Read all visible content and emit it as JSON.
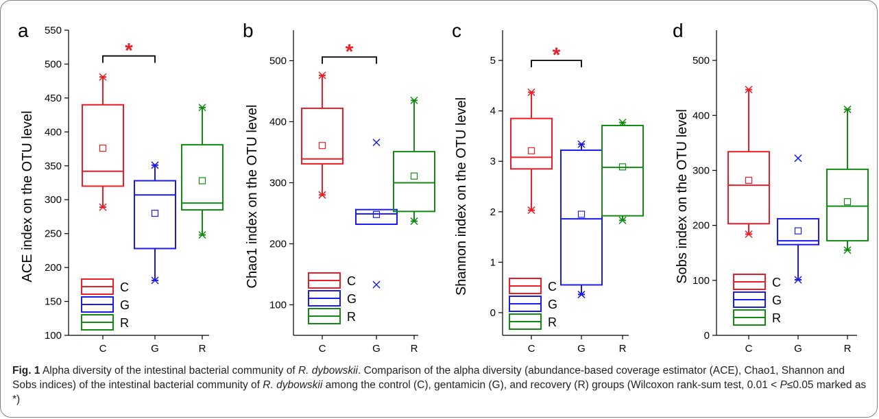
{
  "figure": {
    "label": "Fig. 1",
    "caption_title": "Alpha diversity of the intestinal bacterial community of",
    "species": "R. dybowskii",
    "caption_body_1": "Comparison of the alpha diversity (abundance-based coverage estimator (ACE), Chao1, Shannon and Sobs indices) of the intestinal bacterial community of",
    "caption_body_2": "among the control (C), gentamicin (G), and recovery (R) groups (Wilcoxon rank-sum test, 0.01 <",
    "caption_p": "P",
    "caption_body_3": "≤0.05 marked as *)"
  },
  "colors": {
    "C": "#ee1c24",
    "G": "#1a1af0",
    "R": "#128a12",
    "sig": "#ee1c24"
  },
  "chart_data": [
    {
      "panel": "a",
      "type": "box",
      "ylabel": "ACE index on the OTU level",
      "ylim": [
        100,
        550
      ],
      "yticks": [
        100,
        150,
        200,
        250,
        300,
        350,
        400,
        450,
        500,
        550
      ],
      "categories": [
        "C",
        "G",
        "R"
      ],
      "boxes": [
        {
          "group": "C",
          "q1": 320,
          "median": 342,
          "q3": 440,
          "mean": 376,
          "wlow": 289,
          "whigh": 481,
          "outliers": []
        },
        {
          "group": "G",
          "q1": 228,
          "median": 307,
          "q3": 328,
          "mean": 280,
          "wlow": 181,
          "whigh": 351,
          "outliers": []
        },
        {
          "group": "R",
          "q1": 285,
          "median": 295,
          "q3": 381,
          "mean": 328,
          "wlow": 248,
          "whigh": 436,
          "outliers": []
        }
      ],
      "significance": {
        "from": "C",
        "to": "G",
        "label": "*",
        "y": 512
      },
      "legend": [
        "C",
        "G",
        "R"
      ]
    },
    {
      "panel": "b",
      "type": "box",
      "ylabel": "Chao1 index on the OTU level",
      "ylim": [
        50,
        550
      ],
      "yticks": [
        100,
        200,
        300,
        400,
        500
      ],
      "categories": [
        "C",
        "G",
        "R"
      ],
      "boxes": [
        {
          "group": "C",
          "q1": 331,
          "median": 339,
          "q3": 422,
          "mean": 361,
          "wlow": 280,
          "whigh": 476,
          "outliers": []
        },
        {
          "group": "G",
          "q1": 232,
          "median": 249,
          "q3": 256,
          "mean": 248,
          "wlow": null,
          "whigh": null,
          "outliers": [
            366,
            133
          ]
        },
        {
          "group": "R",
          "q1": 253,
          "median": 300,
          "q3": 351,
          "mean": 311,
          "wlow": 237,
          "whigh": 435,
          "outliers": []
        }
      ],
      "significance": {
        "from": "C",
        "to": "G",
        "label": "*",
        "y": 506
      },
      "legend": [
        "C",
        "G",
        "R"
      ]
    },
    {
      "panel": "c",
      "type": "box",
      "ylabel": "Shannon index on the OTU level",
      "ylim": [
        -0.45,
        5.6
      ],
      "yticks": [
        0,
        1,
        2,
        3,
        4,
        5
      ],
      "categories": [
        "C",
        "G",
        "R"
      ],
      "boxes": [
        {
          "group": "C",
          "q1": 2.85,
          "median": 3.08,
          "q3": 3.85,
          "mean": 3.21,
          "wlow": 2.03,
          "whigh": 4.37,
          "outliers": []
        },
        {
          "group": "G",
          "q1": 0.55,
          "median": 1.86,
          "q3": 3.22,
          "mean": 1.95,
          "wlow": 0.36,
          "whigh": 3.34,
          "outliers": []
        },
        {
          "group": "R",
          "q1": 1.92,
          "median": 2.88,
          "q3": 3.71,
          "mean": 2.89,
          "wlow": 1.83,
          "whigh": 3.77,
          "outliers": []
        }
      ],
      "significance": {
        "from": "C",
        "to": "G",
        "label": "*",
        "y": 5.0
      },
      "legend": [
        "C",
        "G",
        "R"
      ]
    },
    {
      "panel": "d",
      "type": "box",
      "ylabel": "Sobs index on the OTU level",
      "ylim": [
        0,
        555
      ],
      "yticks": [
        0,
        100,
        200,
        300,
        400,
        500
      ],
      "categories": [
        "C",
        "G",
        "R"
      ],
      "boxes": [
        {
          "group": "C",
          "q1": 203,
          "median": 273,
          "q3": 334,
          "mean": 282,
          "wlow": 184,
          "whigh": 447,
          "outliers": []
        },
        {
          "group": "G",
          "q1": 165,
          "median": 172,
          "q3": 212,
          "mean": 190,
          "wlow": 101,
          "whigh": null,
          "outliers": [
            322
          ]
        },
        {
          "group": "R",
          "q1": 172,
          "median": 235,
          "q3": 302,
          "mean": 243,
          "wlow": 155,
          "whigh": 411,
          "outliers": []
        }
      ],
      "significance": null,
      "legend": [
        "C",
        "G",
        "R"
      ]
    }
  ]
}
